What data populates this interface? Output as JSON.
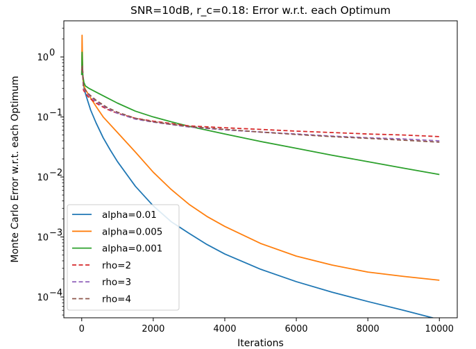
{
  "chart_data": {
    "type": "line",
    "title": "SNR=10dB, r_c=0.18: Error w.r.t. each Optimum",
    "xlabel": "Iterations",
    "ylabel": "Monte Carlo Error w.r.t. each Optimum",
    "y_scale": "log",
    "xlim": [
      -500,
      10500
    ],
    "ylim": [
      4.5e-05,
      4
    ],
    "x_ticks": [
      0,
      2000,
      4000,
      6000,
      8000,
      10000
    ],
    "x_tick_labels": [
      "0",
      "2000",
      "4000",
      "6000",
      "8000",
      "10000"
    ],
    "y_ticks": [
      0.0001,
      0.001,
      0.01,
      0.1,
      1
    ],
    "y_tick_labels": [
      {
        "base": "10",
        "exp": "−4"
      },
      {
        "base": "10",
        "exp": "−3"
      },
      {
        "base": "10",
        "exp": "−2"
      },
      {
        "base": "10",
        "exp": "−1"
      },
      {
        "base": "10",
        "exp": "0"
      }
    ],
    "grid": false,
    "legend_position": "lower-left",
    "series": [
      {
        "name": "alpha=0.01",
        "color": "#1f77b4",
        "style": "solid",
        "x": [
          0,
          10,
          30,
          60,
          100,
          150,
          250,
          400,
          600,
          800,
          1000,
          1500,
          2000,
          2500,
          3000,
          3500,
          4000,
          5000,
          6000,
          7000,
          8000,
          9000,
          10000
        ],
        "y": [
          0.5,
          1.1,
          0.45,
          0.32,
          0.25,
          0.2,
          0.13,
          0.08,
          0.045,
          0.028,
          0.018,
          0.007,
          0.0033,
          0.0018,
          0.00115,
          0.00075,
          0.00052,
          0.00029,
          0.00018,
          0.00012,
          8.4e-05,
          6e-05,
          4.2e-05
        ]
      },
      {
        "name": "alpha=0.005",
        "color": "#ff7f0e",
        "style": "solid",
        "x": [
          0,
          10,
          30,
          60,
          100,
          200,
          400,
          600,
          1000,
          1500,
          2000,
          2500,
          3000,
          3500,
          4000,
          5000,
          6000,
          7000,
          8000,
          9000,
          10000
        ],
        "y": [
          0.5,
          2.3,
          0.45,
          0.33,
          0.29,
          0.23,
          0.15,
          0.1,
          0.055,
          0.026,
          0.012,
          0.0062,
          0.0035,
          0.0022,
          0.0015,
          0.00078,
          0.00048,
          0.00034,
          0.00026,
          0.00022,
          0.00019
        ]
      },
      {
        "name": "alpha=0.001",
        "color": "#2ca02c",
        "style": "solid",
        "x": [
          0,
          10,
          30,
          60,
          100,
          200,
          400,
          700,
          1000,
          1500,
          2000,
          2500,
          3000,
          4000,
          5000,
          6000,
          7000,
          8000,
          9000,
          10000
        ],
        "y": [
          0.5,
          1.2,
          0.5,
          0.38,
          0.33,
          0.3,
          0.26,
          0.21,
          0.17,
          0.125,
          0.1,
          0.083,
          0.07,
          0.052,
          0.039,
          0.03,
          0.023,
          0.018,
          0.014,
          0.011
        ]
      },
      {
        "name": "rho=2",
        "color": "#d62728",
        "style": "dashed",
        "x": [
          0,
          20,
          50,
          100,
          200,
          400,
          700,
          1000,
          1500,
          2000,
          3000,
          4000,
          5000,
          6000,
          7000,
          8000,
          9000,
          10000
        ],
        "y": [
          0.6,
          0.7,
          0.28,
          0.25,
          0.21,
          0.17,
          0.135,
          0.115,
          0.095,
          0.085,
          0.071,
          0.066,
          0.062,
          0.058,
          0.055,
          0.052,
          0.05,
          0.047
        ]
      },
      {
        "name": "rho=3",
        "color": "#9467bd",
        "style": "dashed",
        "x": [
          0,
          20,
          50,
          100,
          200,
          400,
          700,
          1000,
          1500,
          2000,
          3000,
          4000,
          5000,
          6000,
          7000,
          8000,
          9000,
          10000
        ],
        "y": [
          0.6,
          0.7,
          0.3,
          0.27,
          0.23,
          0.18,
          0.14,
          0.115,
          0.092,
          0.082,
          0.068,
          0.061,
          0.056,
          0.052,
          0.048,
          0.045,
          0.043,
          0.04
        ]
      },
      {
        "name": "rho=4",
        "color": "#8c564b",
        "style": "dashed",
        "x": [
          0,
          20,
          50,
          100,
          200,
          400,
          700,
          1000,
          1500,
          2000,
          3000,
          4000,
          5000,
          6000,
          7000,
          8000,
          9000,
          10000
        ],
        "y": [
          0.6,
          0.7,
          0.32,
          0.28,
          0.24,
          0.19,
          0.145,
          0.12,
          0.095,
          0.083,
          0.069,
          0.062,
          0.056,
          0.051,
          0.047,
          0.044,
          0.041,
          0.038
        ]
      }
    ]
  }
}
